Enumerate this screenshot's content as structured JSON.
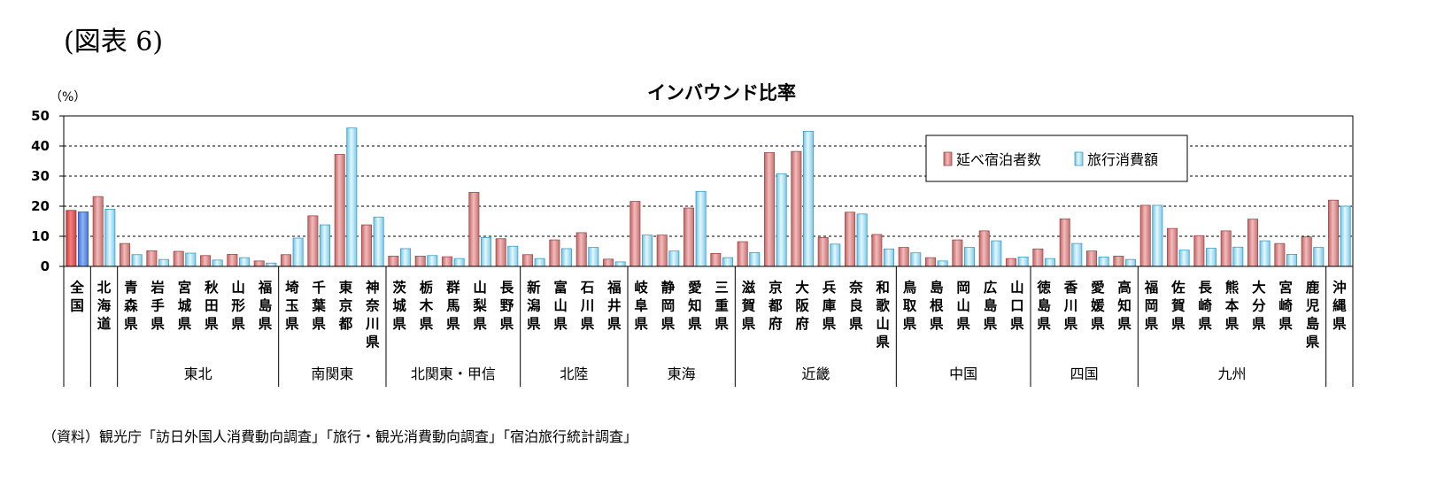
{
  "figure_label": "(図表 6)",
  "source_note": "（資料）観光庁「訪日外国人消費動向調査」「旅行・観光消費動向調査」「宿泊旅行統計調査」",
  "chart_data": {
    "type": "bar",
    "title": "インバウンド比率",
    "ylabel": "（%）",
    "ylim": [
      0,
      50
    ],
    "yticks": [
      0,
      10,
      20,
      30,
      40,
      50
    ],
    "grid": true,
    "legend_position": "top-right",
    "categories": [
      "全国",
      "北海道",
      "青森県",
      "岩手県",
      "宮城県",
      "秋田県",
      "山形県",
      "福島県",
      "埼玉県",
      "千葉県",
      "東京都",
      "神奈川県",
      "茨城県",
      "栃木県",
      "群馬県",
      "山梨県",
      "長野県",
      "新潟県",
      "富山県",
      "石川県",
      "福井県",
      "岐阜県",
      "静岡県",
      "愛知県",
      "三重県",
      "滋賀県",
      "京都府",
      "大阪府",
      "兵庫県",
      "奈良県",
      "和歌山県",
      "鳥取県",
      "島根県",
      "岡山県",
      "広島県",
      "山口県",
      "徳島県",
      "香川県",
      "愛媛県",
      "高知県",
      "福岡県",
      "佐賀県",
      "長崎県",
      "熊本県",
      "大分県",
      "宮崎県",
      "鹿児島県",
      "沖縄県"
    ],
    "series": [
      {
        "name": "延べ宿泊者数",
        "color": "#d98a8a",
        "values": [
          18.6,
          23.2,
          7.6,
          5.2,
          5.0,
          3.6,
          4.0,
          1.8,
          3.9,
          16.8,
          37.2,
          13.8,
          3.4,
          3.4,
          3.2,
          24.6,
          9.2,
          3.9,
          8.8,
          11.2,
          2.4,
          21.6,
          10.4,
          19.4,
          4.3,
          8.2,
          37.8,
          38.2,
          9.6,
          18.0,
          10.6,
          6.3,
          2.9,
          8.8,
          11.8,
          2.6,
          5.8,
          15.8,
          5.1,
          3.4,
          20.3,
          12.6,
          10.2,
          11.8,
          15.7,
          7.6,
          9.8,
          22.0
        ]
      },
      {
        "name": "旅行消費額",
        "color": "#a9dff5",
        "values": [
          18.1,
          19.0,
          3.9,
          2.3,
          4.4,
          2.1,
          2.9,
          1.1,
          9.4,
          13.8,
          46.0,
          16.4,
          5.9,
          3.6,
          2.6,
          9.6,
          6.7,
          2.6,
          5.9,
          6.3,
          1.5,
          10.4,
          5.1,
          24.9,
          2.9,
          4.6,
          30.8,
          44.9,
          7.4,
          17.4,
          5.8,
          4.5,
          1.8,
          6.3,
          8.5,
          3.1,
          2.6,
          7.6,
          3.1,
          2.3,
          20.3,
          5.4,
          6.0,
          6.4,
          8.5,
          4.0,
          6.3,
          20.0
        ]
      }
    ],
    "highlight_category": "全国",
    "highlight_colors": [
      "#e05a5a",
      "#5b8fe8"
    ],
    "regions": [
      {
        "name": "",
        "start": 0,
        "end": 0
      },
      {
        "name": "",
        "start": 1,
        "end": 1
      },
      {
        "name": "東北",
        "start": 2,
        "end": 7
      },
      {
        "name": "南関東",
        "start": 8,
        "end": 11
      },
      {
        "name": "北関東・甲信",
        "start": 12,
        "end": 16
      },
      {
        "name": "北陸",
        "start": 17,
        "end": 20
      },
      {
        "name": "東海",
        "start": 21,
        "end": 24
      },
      {
        "name": "近畿",
        "start": 25,
        "end": 30
      },
      {
        "name": "中国",
        "start": 31,
        "end": 35
      },
      {
        "name": "四国",
        "start": 36,
        "end": 39
      },
      {
        "name": "九州",
        "start": 40,
        "end": 46
      },
      {
        "name": "",
        "start": 47,
        "end": 47
      }
    ]
  }
}
